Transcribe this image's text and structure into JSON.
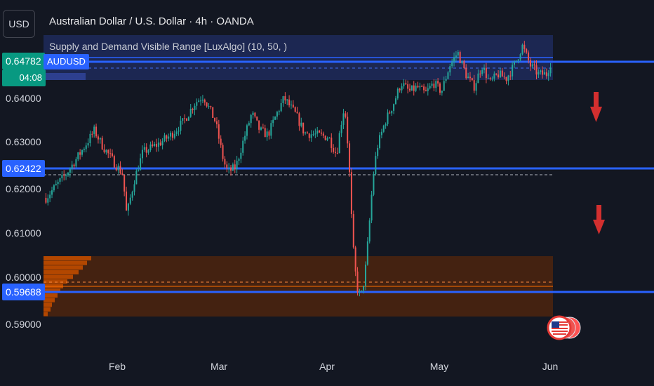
{
  "header": {
    "currency": "USD",
    "title": "Australian Dollar / U.S. Dollar · 4h · OANDA",
    "indicator": "Supply and Demand Visible Range [LuxAlgo] (10, 50, )"
  },
  "price_tags": {
    "current_price": "0.64782",
    "countdown": "04:08",
    "symbol": "AUDUSD",
    "level_mid": "0.62422",
    "level_low": "0.59688"
  },
  "colors": {
    "background": "#131722",
    "bull": "#26a69a",
    "bear": "#ef5350",
    "level_line": "#2962ff",
    "supply_zone": "#1e2a5a",
    "demand_zone": "#4a2410",
    "demand_profile": "#b34700",
    "arrow": "#d32f2f"
  },
  "chart_data": {
    "type": "candlestick",
    "title": "Australian Dollar / U.S. Dollar · 4h · OANDA",
    "y_ticks": [
      "0.64000",
      "0.63000",
      "0.62000",
      "0.61000",
      "0.60000",
      "0.59000"
    ],
    "y_range": [
      0.588,
      0.653
    ],
    "x_ticks": [
      "Feb",
      "Mar",
      "Apr",
      "May",
      "Jun"
    ],
    "levels": [
      0.64782,
      0.62422,
      0.59688
    ],
    "supply_zone": [
      0.6424,
      0.6516
    ],
    "demand_zone": [
      0.5918,
      0.6052
    ],
    "anchors": [
      [
        0,
        0.6155
      ],
      [
        5,
        0.621
      ],
      [
        9,
        0.6265
      ],
      [
        12,
        0.631
      ],
      [
        14,
        0.6275
      ],
      [
        17,
        0.6235
      ],
      [
        19,
        0.621
      ],
      [
        20,
        0.6115
      ],
      [
        22,
        0.62
      ],
      [
        24,
        0.626
      ],
      [
        28,
        0.628
      ],
      [
        31,
        0.63
      ],
      [
        34,
        0.633
      ],
      [
        37,
        0.6375
      ],
      [
        39,
        0.639
      ],
      [
        42,
        0.633
      ],
      [
        44,
        0.624
      ],
      [
        45,
        0.6215
      ],
      [
        47,
        0.6225
      ],
      [
        49,
        0.629
      ],
      [
        51,
        0.635
      ],
      [
        53,
        0.631
      ],
      [
        55,
        0.63
      ],
      [
        57,
        0.6345
      ],
      [
        59,
        0.6385
      ],
      [
        62,
        0.6345
      ],
      [
        64,
        0.6305
      ],
      [
        67,
        0.63
      ],
      [
        70,
        0.6295
      ],
      [
        72,
        0.6255
      ],
      [
        73,
        0.632
      ],
      [
        74,
        0.637
      ],
      [
        75,
        0.625
      ],
      [
        76,
        0.605
      ],
      [
        77,
        0.595
      ],
      [
        78,
        0.5925
      ],
      [
        79,
        0.5975
      ],
      [
        80,
        0.608
      ],
      [
        81,
        0.62
      ],
      [
        82,
        0.627
      ],
      [
        84,
        0.633
      ],
      [
        86,
        0.637
      ],
      [
        88,
        0.642
      ],
      [
        90,
        0.64
      ],
      [
        92,
        0.641
      ],
      [
        94,
        0.6395
      ],
      [
        96,
        0.642
      ],
      [
        98,
        0.64
      ],
      [
        100,
        0.646
      ],
      [
        102,
        0.649
      ],
      [
        104,
        0.644
      ],
      [
        106,
        0.641
      ],
      [
        108,
        0.646
      ],
      [
        110,
        0.642
      ],
      [
        112,
        0.644
      ],
      [
        114,
        0.643
      ],
      [
        116,
        0.646
      ],
      [
        118,
        0.6505
      ],
      [
        120,
        0.646
      ],
      [
        122,
        0.644
      ],
      [
        124,
        0.644
      ],
      [
        125,
        0.6465
      ]
    ]
  }
}
